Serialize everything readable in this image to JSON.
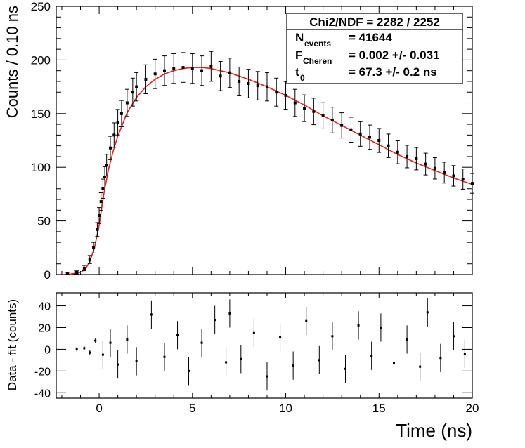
{
  "chart_data": [
    {
      "type": "scatter",
      "panel": "top",
      "title": "",
      "xlabel": "",
      "ylabel": "Counts / 0.10 ns",
      "xlim": [
        -2.3,
        20
      ],
      "ylim": [
        0,
        250
      ],
      "xticks": [
        0,
        5,
        10,
        15,
        20
      ],
      "yticks": [
        0,
        50,
        100,
        150,
        200,
        250
      ],
      "series": [
        {
          "name": "data",
          "style": "points-with-error-bars",
          "color": "#000000",
          "x": [
            -1.7,
            -1.2,
            -0.8,
            -0.5,
            -0.3,
            -0.1,
            0.0,
            0.1,
            0.2,
            0.3,
            0.4,
            0.6,
            0.8,
            1.0,
            1.2,
            1.5,
            1.8,
            2.0,
            2.5,
            3.0,
            3.5,
            4.0,
            4.5,
            5.0,
            5.5,
            6.0,
            6.5,
            7.0,
            7.5,
            8.0,
            8.5,
            9.0,
            9.5,
            10.0,
            10.5,
            11.0,
            11.5,
            12.0,
            12.5,
            13.0,
            13.5,
            14.0,
            14.5,
            15.0,
            15.5,
            16.0,
            16.5,
            17.0,
            17.5,
            18.0,
            18.5,
            19.0,
            19.5,
            20.0
          ],
          "y": [
            1,
            2,
            6,
            14,
            25,
            42,
            55,
            68,
            80,
            91,
            102,
            118,
            130,
            142,
            150,
            160,
            170,
            175,
            182,
            187,
            190,
            192,
            193,
            192,
            190,
            194,
            185,
            188,
            180,
            178,
            176,
            175,
            170,
            167,
            160,
            155,
            152,
            148,
            144,
            139,
            135,
            131,
            128,
            125,
            120,
            114,
            110,
            108,
            103,
            99,
            95,
            92,
            89,
            85
          ]
        },
        {
          "name": "fit",
          "style": "line",
          "color": "#e8201c",
          "x": [
            -2.0,
            -1.5,
            -1.0,
            -0.75,
            -0.5,
            -0.25,
            0.0,
            0.25,
            0.5,
            0.75,
            1.0,
            1.5,
            2.0,
            2.5,
            3.0,
            3.5,
            4.0,
            4.5,
            5.0,
            5.5,
            6.0,
            6.5,
            7.0,
            8.0,
            9.0,
            10.0,
            11.0,
            12.0,
            13.0,
            14.0,
            15.0,
            16.0,
            17.0,
            18.0,
            19.0,
            20.0
          ],
          "y": [
            0,
            0.5,
            2,
            5,
            12,
            25,
            46,
            75,
            98,
            115,
            129,
            151,
            165,
            175,
            182,
            187,
            190,
            192,
            193,
            193,
            192,
            190,
            188,
            182,
            175,
            167,
            158,
            148,
            139,
            130,
            121,
            112,
            104,
            97,
            90,
            84
          ]
        }
      ],
      "stats_box": {
        "chi2": "Chi2/NDF = 2282 / 2252",
        "n_main": "N",
        "n_sub": "events",
        "n_val": "= 41644",
        "f_main": "F",
        "f_sub": "Cheren",
        "f_val": "= 0.002 +/- 0.031",
        "t_main": "t",
        "t_sub": "0",
        "t_val": "= 67.3 +/- 0.2 ns"
      }
    },
    {
      "type": "scatter",
      "panel": "bottom",
      "title": "",
      "xlabel": "Time (ns)",
      "ylabel": "Data - fit (counts)",
      "xlim": [
        -2.3,
        20
      ],
      "ylim": [
        -45,
        52
      ],
      "xticks": [
        0,
        5,
        10,
        15,
        20
      ],
      "yticks": [
        -40,
        -20,
        0,
        20,
        40
      ],
      "series": [
        {
          "name": "residuals",
          "style": "points-with-error-bars",
          "color": "#000000",
          "x": [
            -1.2,
            -0.8,
            -0.5,
            -0.2,
            0.2,
            0.6,
            1.0,
            1.5,
            2.0,
            2.8,
            3.5,
            4.2,
            4.8,
            5.5,
            6.2,
            6.8,
            7.0,
            7.6,
            8.3,
            9.0,
            9.7,
            10.4,
            11.1,
            11.8,
            12.5,
            13.2,
            13.9,
            14.6,
            15.1,
            15.8,
            16.5,
            17.2,
            17.6,
            18.3,
            19.0,
            19.6
          ],
          "y": [
            0,
            1,
            -3,
            8,
            -5,
            6,
            -14,
            9,
            -11,
            32,
            -7,
            13,
            -20,
            6,
            27,
            -12,
            33,
            -9,
            15,
            -25,
            11,
            -15,
            26,
            -10,
            12,
            -18,
            22,
            -6,
            20,
            -13,
            9,
            -16,
            34,
            -8,
            12,
            -4
          ]
        }
      ]
    }
  ]
}
